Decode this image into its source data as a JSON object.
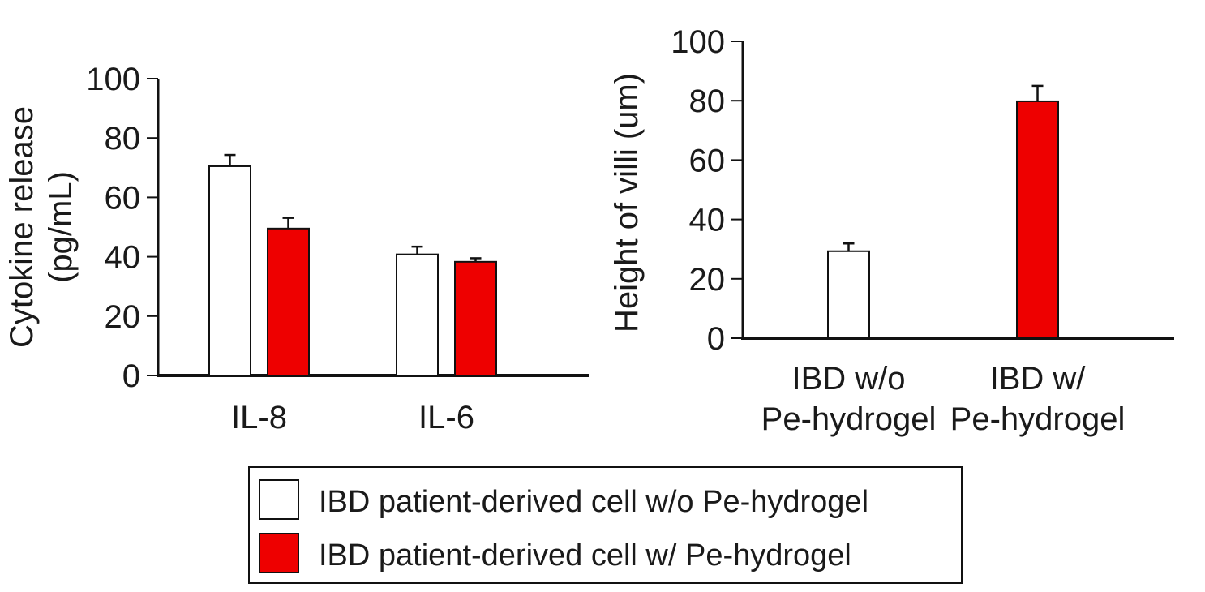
{
  "colors": {
    "without": "#ffffff",
    "with": "#ee0000",
    "axis": "#111111"
  },
  "chart_data": [
    {
      "type": "bar",
      "title": "",
      "xlabel": "",
      "ylabel_lines": [
        "Cytokine release",
        "(pg/mL)"
      ],
      "ylim": [
        0,
        100
      ],
      "yticks": [
        0,
        20,
        40,
        60,
        80,
        100
      ],
      "categories": [
        "IL-8",
        "IL-6"
      ],
      "series": [
        {
          "values": [
            70.5,
            40.8
          ],
          "errors": [
            3.8,
            2.6
          ],
          "color": "#ffffff"
        },
        {
          "values": [
            49.5,
            38.3
          ],
          "errors": [
            3.6,
            1.2
          ],
          "color": "#ee0000"
        }
      ]
    },
    {
      "type": "bar",
      "title": "",
      "xlabel": "",
      "ylabel": "Height of villi (um)",
      "ylim": [
        0,
        100
      ],
      "yticks": [
        0,
        20,
        40,
        60,
        80,
        100
      ],
      "categories": [
        [
          "IBD w/o",
          "Pe-hydrogel"
        ],
        [
          "IBD w/",
          "Pe-hydrogel"
        ]
      ],
      "values": [
        29.3,
        79.8
      ],
      "errors": [
        2.6,
        5.2
      ],
      "colors": [
        "#ffffff",
        "#ee0000"
      ]
    }
  ],
  "legend": {
    "placement": "bottom-center",
    "entries": [
      {
        "label": "IBD patient-derived cell w/o Pe-hydrogel",
        "color": "#ffffff"
      },
      {
        "label": "IBD patient-derived cell w/ Pe-hydrogel",
        "color": "#ee0000"
      }
    ]
  }
}
